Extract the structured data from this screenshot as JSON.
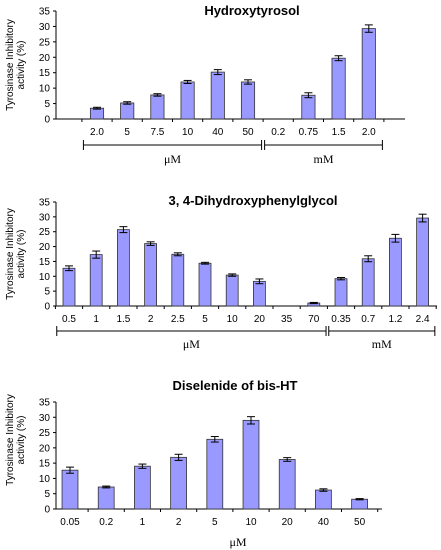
{
  "chart_data": [
    {
      "type": "bar",
      "title": "Hydroxytyrosol",
      "ylabel": [
        "Tyrosinase Inhibitory",
        "activity (%)"
      ],
      "ylim": [
        0,
        35
      ],
      "yticks": [
        "0",
        "5",
        "10",
        "15",
        "20",
        "25",
        "30",
        "35"
      ],
      "categories": [
        "2.0",
        "5",
        "7.5",
        "10",
        "40",
        "50",
        "0.2",
        "0.75",
        "1.5",
        "2.0"
      ],
      "values": [
        3.5,
        5.2,
        7.8,
        12.0,
        15.2,
        12.0,
        0,
        7.7,
        19.7,
        29.3
      ],
      "errors": [
        0.3,
        0.4,
        0.4,
        0.5,
        0.8,
        0.7,
        0,
        0.8,
        0.8,
        1.2
      ],
      "groups": [
        {
          "label": "μM",
          "count": 6
        },
        {
          "label": "mM",
          "count": 4
        }
      ],
      "bar_color": "#9999ff"
    },
    {
      "type": "bar",
      "title": "3, 4-Dihydroxyphenylglycol",
      "ylabel": [
        "Tyrosinase Inhibitory",
        "activity (%)"
      ],
      "ylim": [
        0,
        35
      ],
      "yticks": [
        "0",
        "5",
        "10",
        "15",
        "20",
        "25",
        "30",
        "35"
      ],
      "categories": [
        "0.5",
        "1",
        "1.5",
        "2",
        "2.5",
        "5",
        "10",
        "20",
        "35",
        "70",
        "0.35",
        "0.7",
        "1.2",
        "2.4"
      ],
      "values": [
        12.7,
        17.3,
        25.7,
        21.0,
        17.4,
        14.4,
        10.4,
        8.3,
        0,
        1.0,
        9.2,
        15.9,
        22.8,
        29.6
      ],
      "errors": [
        0.8,
        1.2,
        1.0,
        0.6,
        0.5,
        0.3,
        0.4,
        0.8,
        0,
        0.2,
        0.4,
        1.0,
        1.3,
        1.3
      ],
      "groups": [
        {
          "label": "μM",
          "count": 10
        },
        {
          "label": "mM",
          "count": 4
        }
      ],
      "bar_color": "#9999ff"
    },
    {
      "type": "bar",
      "title": "Diselenide of bis-HT",
      "ylabel": [
        "Tyrosinase Inhibitory",
        "activity (%)"
      ],
      "ylim": [
        0,
        35
      ],
      "yticks": [
        "0",
        "5",
        "10",
        "15",
        "20",
        "25",
        "30",
        "35"
      ],
      "categories": [
        "0.05",
        "0.2",
        "1",
        "2",
        "5",
        "10",
        "20",
        "40",
        "50"
      ],
      "values": [
        12.7,
        7.2,
        14.0,
        16.9,
        22.8,
        29.0,
        16.2,
        6.2,
        3.2
      ],
      "errors": [
        1.0,
        0.3,
        0.7,
        1.0,
        0.9,
        1.2,
        0.6,
        0.4,
        0.2
      ],
      "xlabel": "μM",
      "bar_color": "#9999ff"
    }
  ]
}
